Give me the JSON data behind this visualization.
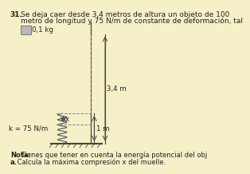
{
  "background_color": "#f5f0c8",
  "title_number": "31.",
  "title_text": "Se deja caer desde 3,4 metros de altura un objeto de 100",
  "title_text2": "metro de longitud y 75 N/m de constante de deformación, tal",
  "mass_label": "0,1 kg",
  "height_label": "3,4 m",
  "spring_length_label": "1 m",
  "spring_constant_label": "k = 75 N/m",
  "compression_label": "x",
  "note_bold": "Nota:",
  "note_text": " Tienes que tener en cuenta la energía potencial del obj",
  "question_bold": "a.",
  "question_text": " Calcula la máxima compresión x del muelle.",
  "box_color": "#b8b8b8",
  "line_color": "#444444",
  "spring_color": "#666666",
  "dashed_color": "#888888",
  "ground_color": "#444444",
  "text_color": "#222222"
}
